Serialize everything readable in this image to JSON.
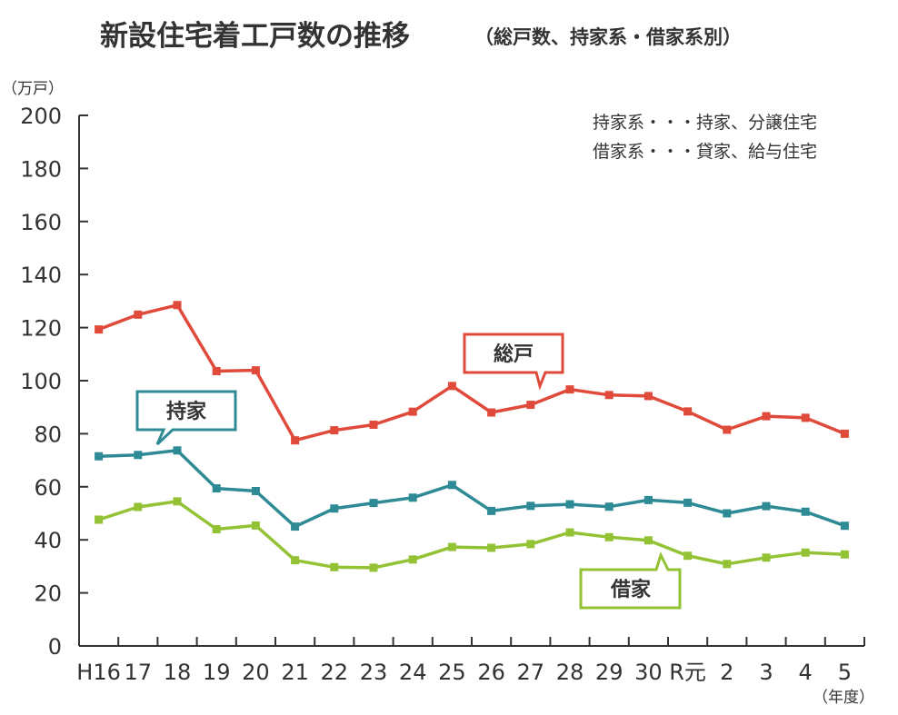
{
  "chart_data": {
    "type": "line",
    "title": "新設住宅着工戸数の推移",
    "subtitle": "（総戸数、持家系・借家系別）",
    "ylabel": "（万戸）",
    "xlabel": "（年度）",
    "ylim": [
      0,
      200
    ],
    "yticks": [
      0,
      20,
      40,
      60,
      80,
      100,
      120,
      140,
      160,
      180,
      200
    ],
    "categories": [
      "H16",
      "17",
      "18",
      "19",
      "20",
      "21",
      "22",
      "23",
      "24",
      "25",
      "26",
      "27",
      "28",
      "29",
      "30",
      "R元",
      "2",
      "3",
      "4",
      "5"
    ],
    "series": [
      {
        "name": "総戸",
        "color": "#e04a3a",
        "values": [
          119.3,
          124.9,
          128.5,
          103.6,
          103.9,
          77.5,
          81.3,
          83.4,
          88.3,
          98.0,
          88.0,
          90.9,
          96.7,
          94.6,
          94.2,
          88.4,
          81.5,
          86.6,
          86.0,
          80.0
        ]
      },
      {
        "name": "持家",
        "color": "#2e8b96",
        "values": [
          71.5,
          72.0,
          73.7,
          59.4,
          58.4,
          45.0,
          51.8,
          53.9,
          55.9,
          60.7,
          50.9,
          52.8,
          53.4,
          52.5,
          55.0,
          54.0,
          50.0,
          52.7,
          50.6,
          45.3
        ]
      },
      {
        "name": "借家",
        "color": "#93c234",
        "values": [
          47.6,
          52.4,
          54.5,
          44.0,
          45.4,
          32.3,
          29.7,
          29.5,
          32.6,
          37.3,
          37.0,
          38.4,
          42.8,
          41.0,
          39.8,
          34.0,
          30.9,
          33.3,
          35.2,
          34.5
        ]
      }
    ],
    "notes": [
      "持家系・・・持家、分譲住宅",
      "借家系・・・貸家、給与住宅"
    ],
    "grid": false
  }
}
